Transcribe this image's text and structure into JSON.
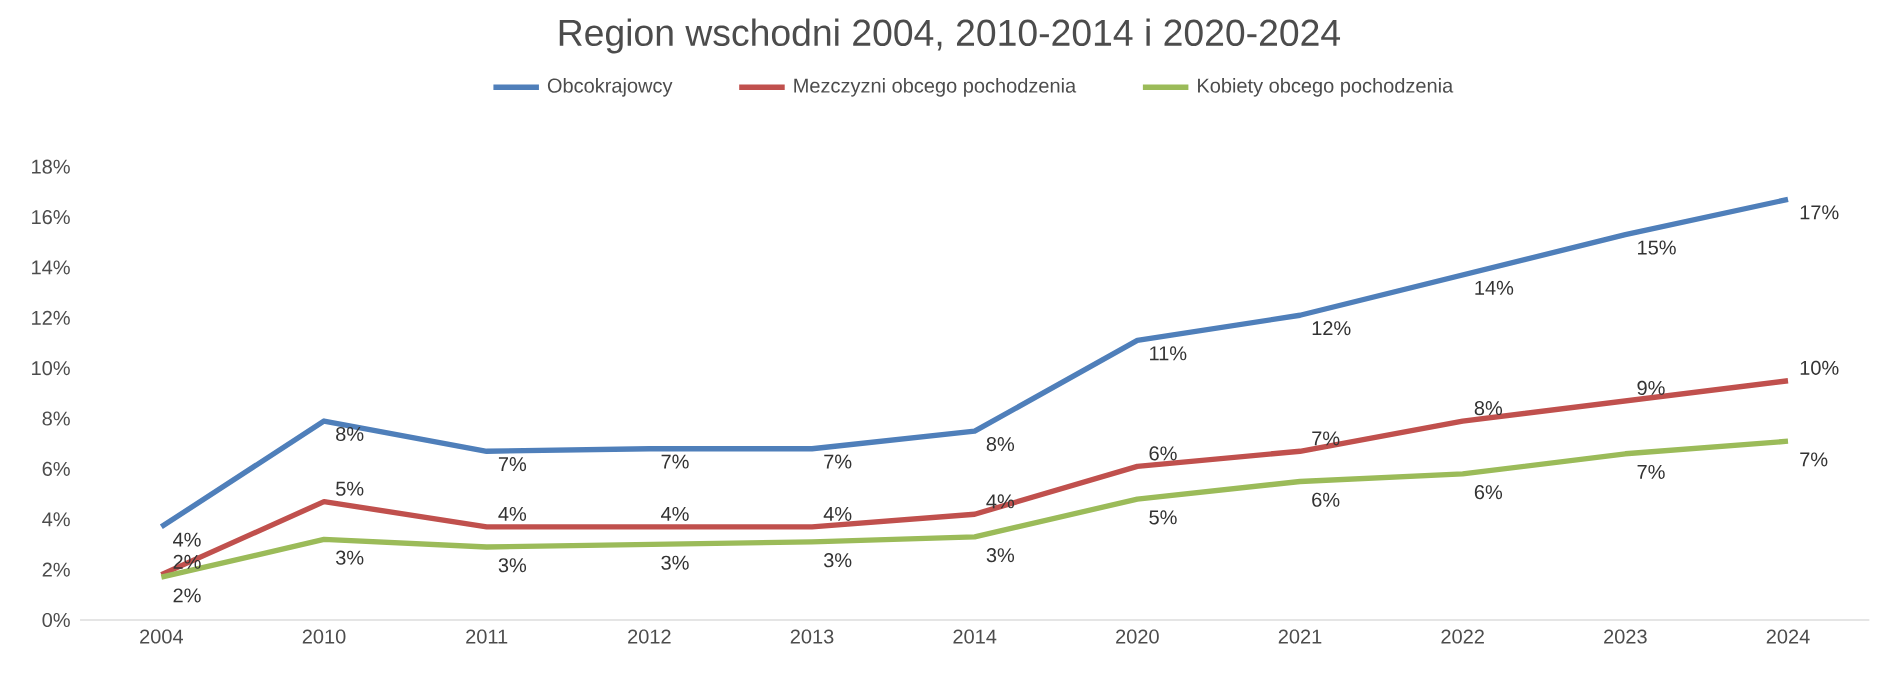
{
  "chart_data": {
    "type": "line",
    "title": "Region wschodni 2004, 2010-2014 i 2020-2024",
    "categories": [
      "2004",
      "2010",
      "2011",
      "2012",
      "2013",
      "2014",
      "2020",
      "2021",
      "2022",
      "2023",
      "2024"
    ],
    "series": [
      {
        "name": "Obcokrajowcy",
        "color": "#4f7fba",
        "values": [
          3.7,
          7.9,
          6.7,
          6.8,
          6.8,
          7.5,
          11.1,
          12.1,
          13.7,
          15.3,
          16.7
        ],
        "value_labels": [
          "4%",
          "8%",
          "7%",
          "7%",
          "7%",
          "8%",
          "11%",
          "12%",
          "14%",
          "15%",
          "17%"
        ]
      },
      {
        "name": "Mezczyzni obcego pochodzenia",
        "color": "#c0504d",
        "values": [
          1.8,
          4.7,
          3.7,
          3.7,
          3.7,
          4.2,
          6.1,
          6.7,
          7.9,
          8.7,
          9.5
        ],
        "value_labels": [
          "2%",
          "5%",
          "4%",
          "4%",
          "4%",
          "4%",
          "6%",
          "7%",
          "8%",
          "9%",
          "10%"
        ]
      },
      {
        "name": "Kobiety obcego pochodzenia",
        "color": "#9bbb59",
        "values": [
          1.7,
          3.2,
          2.9,
          3.0,
          3.1,
          3.3,
          4.8,
          5.5,
          5.8,
          6.6,
          7.1
        ],
        "value_labels": [
          "2%",
          "3%",
          "3%",
          "3%",
          "3%",
          "3%",
          "5%",
          "6%",
          "6%",
          "7%",
          "7%"
        ]
      }
    ],
    "ylim": [
      0,
      18
    ],
    "yticks": [
      {
        "value": 0,
        "label": "0%"
      },
      {
        "value": 2,
        "label": "2%"
      },
      {
        "value": 4,
        "label": "4%"
      },
      {
        "value": 6,
        "label": "6%"
      },
      {
        "value": 8,
        "label": "8%"
      },
      {
        "value": 10,
        "label": "10%"
      },
      {
        "value": 12,
        "label": "12%"
      },
      {
        "value": 14,
        "label": "14%"
      },
      {
        "value": 16,
        "label": "16%"
      },
      {
        "value": 18,
        "label": "18%"
      }
    ],
    "legend": "top"
  }
}
